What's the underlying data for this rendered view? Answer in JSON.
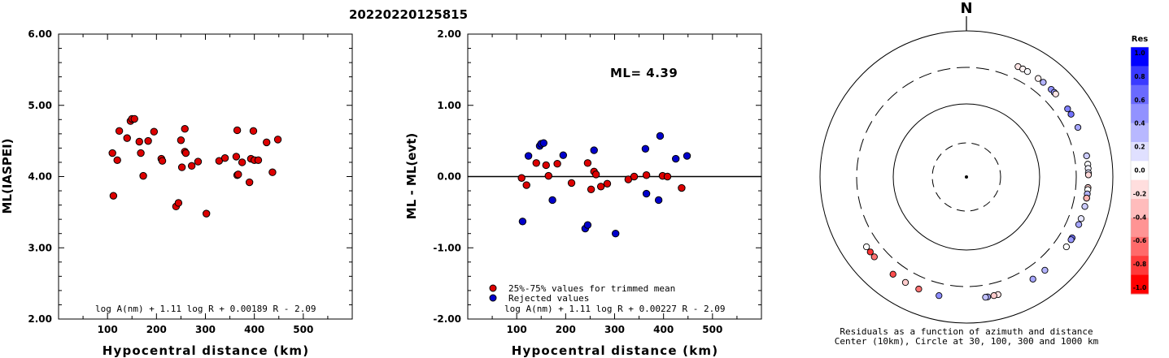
{
  "page_title": "20220220125815",
  "chart_data": [
    {
      "type": "scatter",
      "xlabel": "Hypocentral distance (km)",
      "ylabel": "ML(IASPEI)",
      "xlim": [
        0,
        600
      ],
      "ylim": [
        2.0,
        6.0
      ],
      "xticks": [
        "100",
        "200",
        "300",
        "400",
        "500"
      ],
      "yticks": [
        "2.00",
        "3.00",
        "4.00",
        "5.00",
        "6.00"
      ],
      "formula": "log A(nm) + 1.11 log R + 0.00189 R - 2.09",
      "series": [
        {
          "color": "#dd0000",
          "points": [
            [
              110,
              4.33
            ],
            [
              112,
              3.73
            ],
            [
              120,
              4.23
            ],
            [
              124,
              4.64
            ],
            [
              140,
              4.54
            ],
            [
              147,
              4.78
            ],
            [
              150,
              4.81
            ],
            [
              155,
              4.81
            ],
            [
              165,
              4.49
            ],
            [
              168,
              4.33
            ],
            [
              173,
              4.01
            ],
            [
              183,
              4.5
            ],
            [
              195,
              4.63
            ],
            [
              210,
              4.25
            ],
            [
              212,
              4.22
            ],
            [
              240,
              3.58
            ],
            [
              245,
              3.63
            ],
            [
              250,
              4.51
            ],
            [
              252,
              4.13
            ],
            [
              258,
              4.67
            ],
            [
              258,
              4.35
            ],
            [
              260,
              4.33
            ],
            [
              272,
              4.15
            ],
            [
              285,
              4.21
            ],
            [
              302,
              3.48
            ],
            [
              328,
              4.22
            ],
            [
              340,
              4.26
            ],
            [
              363,
              4.28
            ],
            [
              365,
              4.65
            ],
            [
              365,
              4.02
            ],
            [
              367,
              4.03
            ],
            [
              375,
              4.2
            ],
            [
              390,
              3.92
            ],
            [
              393,
              4.25
            ],
            [
              398,
              4.64
            ],
            [
              400,
              4.23
            ],
            [
              408,
              4.23
            ],
            [
              425,
              4.48
            ],
            [
              437,
              4.06
            ],
            [
              448,
              4.52
            ]
          ]
        }
      ]
    },
    {
      "type": "scatter",
      "xlabel": "Hypocentral distance (km)",
      "ylabel": "ML - ML(evt)",
      "xlim": [
        0,
        600
      ],
      "ylim": [
        -2.0,
        2.0
      ],
      "xticks": [
        "100",
        "200",
        "300",
        "400",
        "500"
      ],
      "yticks": [
        "-2.00",
        "-1.00",
        "0.00",
        "1.00",
        "2.00"
      ],
      "annotation": "ML= 4.39",
      "legend": [
        "25%-75% values for trimmed mean",
        "Rejected values"
      ],
      "formula": "log A(nm) + 1.11 log R + 0.00227 R - 2.09",
      "series": [
        {
          "name": "25%-75% values for trimmed mean",
          "color": "#dd0000",
          "points": [
            [
              110,
              -0.02
            ],
            [
              120,
              -0.12
            ],
            [
              140,
              0.19
            ],
            [
              160,
              0.16
            ],
            [
              165,
              0.01
            ],
            [
              183,
              0.18
            ],
            [
              212,
              -0.09
            ],
            [
              245,
              0.19
            ],
            [
              252,
              -0.18
            ],
            [
              258,
              0.07
            ],
            [
              262,
              0.03
            ],
            [
              272,
              -0.14
            ],
            [
              285,
              -0.1
            ],
            [
              328,
              -0.04
            ],
            [
              340,
              0.0
            ],
            [
              365,
              0.02
            ],
            [
              398,
              0.01
            ],
            [
              408,
              0.0
            ],
            [
              437,
              -0.16
            ]
          ]
        },
        {
          "name": "Rejected values",
          "color": "#0000cc",
          "points": [
            [
              112,
              -0.63
            ],
            [
              124,
              0.29
            ],
            [
              147,
              0.43
            ],
            [
              150,
              0.46
            ],
            [
              155,
              0.47
            ],
            [
              173,
              -0.33
            ],
            [
              195,
              0.3
            ],
            [
              240,
              -0.73
            ],
            [
              245,
              -0.68
            ],
            [
              258,
              0.37
            ],
            [
              302,
              -0.8
            ],
            [
              363,
              0.39
            ],
            [
              365,
              -0.24
            ],
            [
              390,
              -0.33
            ],
            [
              393,
              0.57
            ],
            [
              425,
              0.25
            ],
            [
              448,
              0.29
            ]
          ]
        }
      ]
    },
    {
      "type": "scatter",
      "title": "N",
      "caption_line1": "Residuals as a function of azimuth and distance",
      "caption_line2": "Center (10km), Circle at 30, 100, 300 and 1000 km",
      "colorbar_title": "Res",
      "colorbar_ticks": [
        "1.0",
        "0.8",
        "0.6",
        "0.4",
        "0.2",
        "0.0",
        "-0.2",
        "-0.4",
        "-0.6",
        "-0.8",
        "-1.0"
      ],
      "colorbar_colors": [
        "#0000ff",
        "#3a3aff",
        "#6a6aff",
        "#9292ff",
        "#b8b8ff",
        "#e0e0ff",
        "#ffffff",
        "#ffdede",
        "#ffbcbc",
        "#ff9494",
        "#ff6a6a",
        "#ff3a3a",
        "#ff0000"
      ],
      "axes": "polar: azimuth in degrees clockwise from North, residual in ML units",
      "points": [
        {
          "az": 25.0,
          "res": -0.1
        },
        {
          "az": 27.5,
          "res": -0.05
        },
        {
          "az": 30.0,
          "res": 0.02
        },
        {
          "az": 36.0,
          "res": -0.05
        },
        {
          "az": 39.0,
          "res": 0.3
        },
        {
          "az": 44.0,
          "res": 0.43
        },
        {
          "az": 46.0,
          "res": 0.4
        },
        {
          "az": 47.0,
          "res": -0.1
        },
        {
          "az": 56.0,
          "res": 0.5
        },
        {
          "az": 59.0,
          "res": 0.55
        },
        {
          "az": 66.0,
          "res": 0.35
        },
        {
          "az": 80.0,
          "res": 0.2
        },
        {
          "az": 84.0,
          "res": 0.02
        },
        {
          "az": 86.0,
          "res": 0.05
        },
        {
          "az": 88.0,
          "res": 0.1
        },
        {
          "az": 89.0,
          "res": -0.15
        },
        {
          "az": 95.0,
          "res": -0.2
        },
        {
          "az": 96.0,
          "res": 0.0
        },
        {
          "az": 98.0,
          "res": 0.3
        },
        {
          "az": 100.0,
          "res": -0.1
        },
        {
          "az": 100.0,
          "res": -0.3
        },
        {
          "az": 104.0,
          "res": 0.2
        },
        {
          "az": 110.0,
          "res": 0.1
        },
        {
          "az": 113.0,
          "res": 0.35
        },
        {
          "az": 120.0,
          "res": 0.55
        },
        {
          "az": 121.0,
          "res": 0.4
        },
        {
          "az": 125.0,
          "res": 0.0
        },
        {
          "az": 140.0,
          "res": 0.3
        },
        {
          "az": 147.0,
          "res": 0.35
        },
        {
          "az": 165.0,
          "res": -0.1
        },
        {
          "az": 167.0,
          "res": -0.2
        },
        {
          "az": 170.0,
          "res": 0.35
        },
        {
          "az": 171.0,
          "res": 0.25
        },
        {
          "az": 193.0,
          "res": 0.45
        },
        {
          "az": 203.0,
          "res": -0.55
        },
        {
          "az": 210.0,
          "res": -0.2
        },
        {
          "az": 217.0,
          "res": -0.7
        },
        {
          "az": 229.0,
          "res": -0.55
        },
        {
          "az": 232.0,
          "res": -0.8
        },
        {
          "az": 235.0,
          "res": -0.0
        }
      ]
    }
  ]
}
